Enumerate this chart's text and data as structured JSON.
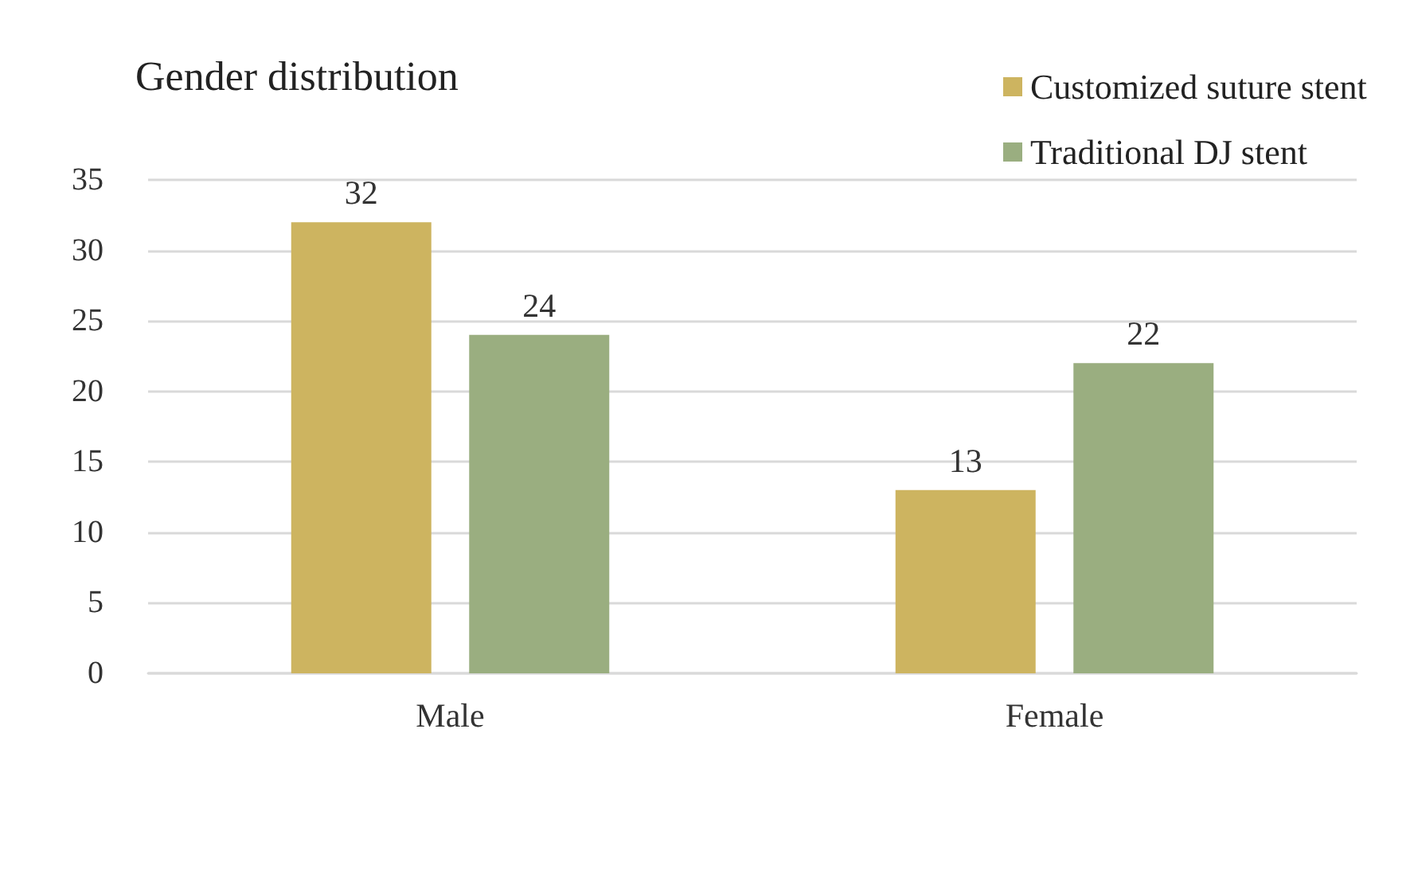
{
  "chart_data": {
    "type": "bar",
    "title": "Gender distribution",
    "categories": [
      "Male",
      "Female"
    ],
    "series": [
      {
        "name": "Customized suture stent",
        "color": "#cdb460",
        "values": [
          32,
          13
        ]
      },
      {
        "name": "Traditional DJ stent",
        "color": "#9aae80",
        "values": [
          24,
          22
        ]
      }
    ],
    "ylim": [
      0,
      35
    ],
    "yticks": [
      0,
      5,
      10,
      15,
      20,
      25,
      30,
      35
    ],
    "grid": "y",
    "legend": "top right",
    "data_labels": true
  }
}
